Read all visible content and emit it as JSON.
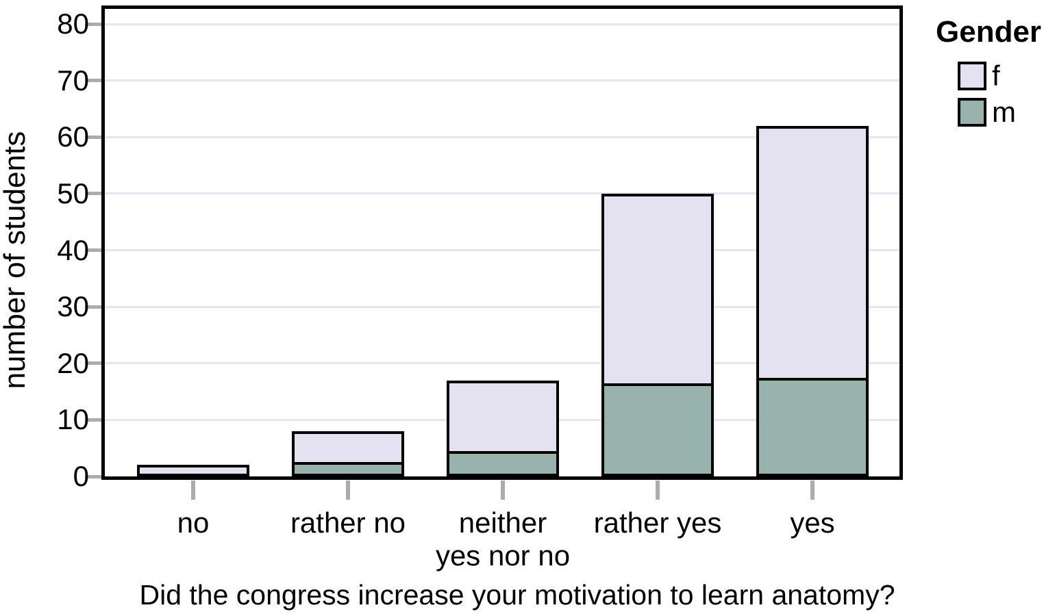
{
  "chart_data": {
    "type": "bar",
    "stacked": true,
    "title": "",
    "xlabel": "Did the congress increase your motivation to learn anatomy?",
    "ylabel": "number of students",
    "categories": [
      "no",
      "rather no",
      "neither\nyes nor no",
      "rather yes",
      "yes"
    ],
    "series": [
      {
        "name": "m",
        "color": "#98B2AE",
        "values": [
          0,
          2,
          4,
          16,
          17
        ]
      },
      {
        "name": "f",
        "color": "#E4E2F0",
        "values": [
          2,
          6,
          13,
          34,
          45
        ]
      }
    ],
    "totals": [
      2,
      8,
      17,
      50,
      62
    ],
    "ylim": [
      0,
      80
    ],
    "yticks": [
      0,
      10,
      20,
      30,
      40,
      50,
      60,
      70,
      80
    ],
    "grid": "horizontal",
    "legend": {
      "title": "Gender",
      "position": "top-right",
      "entries": [
        "f",
        "m"
      ]
    },
    "colors": {
      "grid": "#E7E5F3",
      "tick": "#ABABAB",
      "axis": "#000000",
      "bar_border": "#000000",
      "background": "#FFFFFF"
    }
  }
}
